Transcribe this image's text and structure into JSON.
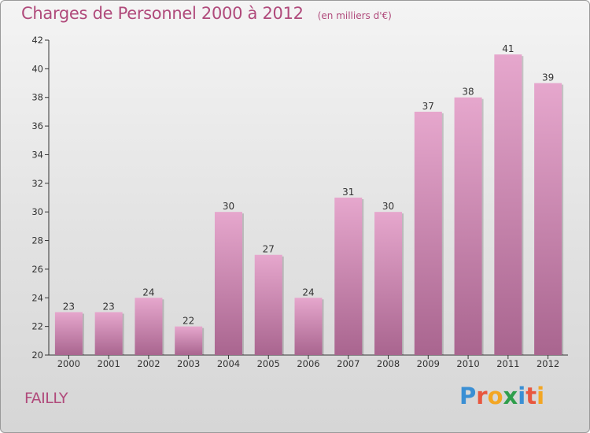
{
  "header": {
    "title": "Charges de Personnel 2000 à 2012",
    "subtitle": "(en milliers d'€)"
  },
  "footer": {
    "commune": "FAILLY",
    "logo_text": "Proxiti",
    "logo_letter_colors": [
      "#3a8fd4",
      "#e8573f",
      "#f3a623",
      "#2f9e4b",
      "#3a8fd4",
      "#e8573f",
      "#f3a623"
    ]
  },
  "colors": {
    "bar_top": "#e6a7cd",
    "bar_bottom": "#a9658f",
    "axis": "#333333",
    "text": "#333333"
  },
  "chart_data": {
    "type": "bar",
    "title": "Charges de Personnel 2000 à 2012",
    "subtitle": "(en milliers d'€)",
    "categories": [
      "2000",
      "2001",
      "2002",
      "2003",
      "2004",
      "2005",
      "2006",
      "2007",
      "2008",
      "2009",
      "2010",
      "2011",
      "2012"
    ],
    "values": [
      23,
      23,
      24,
      22,
      30,
      27,
      24,
      31,
      30,
      37,
      38,
      41,
      39
    ],
    "ylim": [
      20,
      42
    ],
    "yticks": [
      20,
      22,
      24,
      26,
      28,
      30,
      32,
      34,
      36,
      38,
      40,
      42
    ],
    "data_labels": true,
    "grid": false,
    "legend": "none"
  }
}
